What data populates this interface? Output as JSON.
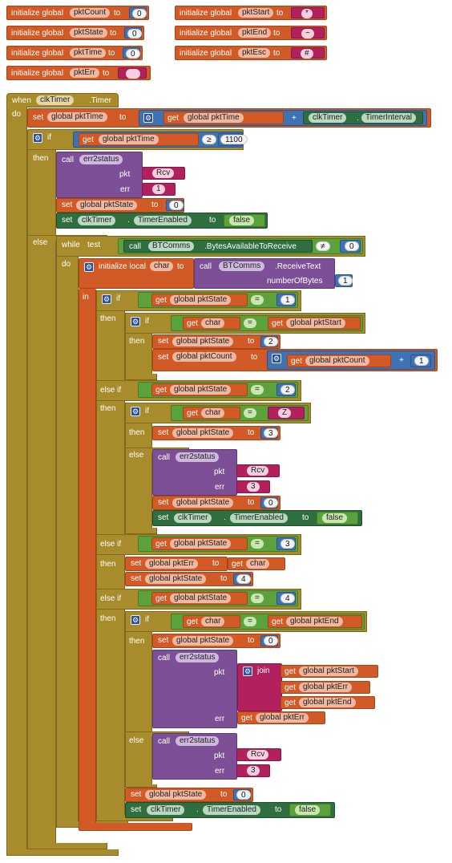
{
  "keywords": {
    "initialize_global": "initialize global",
    "to": "to",
    "when": "when",
    "do": "do",
    "set": "set",
    "get": "get",
    "global_pktTime": "global pktTime",
    "global_pktState": "global pktState",
    "global_pktCount": "global pktCount",
    "global_pktErr": "global pktErr",
    "global_pktStart": "global pktStart",
    "global_pktEnd": "global pktEnd",
    "if": "if",
    "then": "then",
    "else": "else",
    "else_if": "else if",
    "call": "call",
    "err2status": "err2status",
    "pkt": "pkt",
    "err": "err",
    "while": "while",
    "test": "test",
    "in": "in",
    "join": "join",
    "initialize_local": "initialize local",
    "char": "char",
    "numberOfBytes": "numberOfBytes",
    "clkTimer": "clkTimer",
    "Timer": ".Timer",
    "dot": ".",
    "TimerInterval": "TimerInterval",
    "TimerEnabled": "TimerEnabled",
    "BTComms": "BTComms",
    "BytesAvailableToReceive": ".BytesAvailableToReceive",
    "ReceiveText": ".ReceiveText",
    "false": "false",
    "plus": "+",
    "eq": "=",
    "ge": "≥",
    "ne": "≠",
    "chevron": "▾",
    "gear": "⚙"
  },
  "globals": [
    {
      "name": "pktCount",
      "value": "0",
      "type": "number"
    },
    {
      "name": "pktState",
      "value": "0",
      "type": "number"
    },
    {
      "name": "pktTime",
      "value": "0",
      "type": "number"
    },
    {
      "name": "pktErr",
      "value": "",
      "type": "text"
    },
    {
      "name": "pktStart",
      "value": "*",
      "type": "text"
    },
    {
      "name": "pktEnd",
      "value": "~",
      "type": "text"
    },
    {
      "name": "pktEsc",
      "value": "#",
      "type": "text"
    }
  ],
  "values": {
    "n0": "0",
    "n1": "1",
    "n2": "2",
    "n3": "3",
    "n4": "4",
    "n1100": "1100",
    "t1": "1",
    "t3": "3",
    "rcv": "Rcv",
    "z": "Z"
  },
  "colors": {
    "variables": "#d25a26",
    "control": "#a88b2a",
    "procedures": "#7d4f97",
    "logic": "#5ba23c",
    "component": "#2f6e3e",
    "math": "#3f72b3",
    "text": "#b2205e"
  }
}
